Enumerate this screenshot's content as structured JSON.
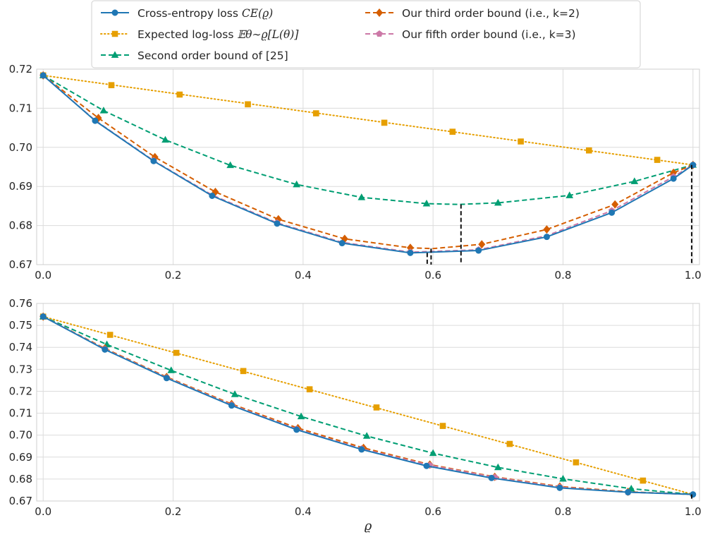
{
  "chart_data": {
    "type": "line",
    "xlabel": "ϱ",
    "legend": {
      "placement": "top-center",
      "entries": [
        {
          "key": "ce",
          "label": "Cross-entropy loss ",
          "math": "CE(ϱ)"
        },
        {
          "key": "exp",
          "label": "Expected log-loss ",
          "math": "𝔼θ∼ϱ[L(θ)]"
        },
        {
          "key": "second",
          "label": "Second order bound of [25]",
          "math": ""
        },
        {
          "key": "third",
          "label": "Our third order bound (i.e., k=2)",
          "math": ""
        },
        {
          "key": "fifth",
          "label": "Our fifth order bound (i.e., k=3)",
          "math": ""
        }
      ]
    },
    "styles": {
      "ce": {
        "color": "#1f77b4",
        "dash": "",
        "marker": "circle"
      },
      "exp": {
        "color": "#e69f00",
        "dash": "1.5,3.5",
        "marker": "square"
      },
      "second": {
        "color": "#009e73",
        "dash": "7,4",
        "marker": "triangle"
      },
      "third": {
        "color": "#d55e00",
        "dash": "7,4",
        "marker": "diamond"
      },
      "fifth": {
        "color": "#cc79a7",
        "dash": "7,4",
        "marker": "pentagon"
      }
    },
    "panels": [
      {
        "name": "top",
        "xlim": [
          -0.01,
          1.01
        ],
        "ylim": [
          0.67,
          0.72
        ],
        "xticks": [
          "0.0",
          "0.2",
          "0.4",
          "0.6",
          "0.8",
          "1.0"
        ],
        "yticks": [
          "0.67",
          "0.68",
          "0.69",
          "0.70",
          "0.71",
          "0.72"
        ],
        "endpoints": {
          "y0": 0.7184,
          "y1": 0.6955
        },
        "series": {
          "ce": {
            "curve": [
              [
                0,
                0.7184
              ],
              [
                0.08,
                0.7068
              ],
              [
                0.17,
                0.6965
              ],
              [
                0.26,
                0.6876
              ],
              [
                0.36,
                0.6805
              ],
              [
                0.46,
                0.6755
              ],
              [
                0.565,
                0.673
              ],
              [
                0.67,
                0.6736
              ],
              [
                0.775,
                0.6771
              ],
              [
                0.875,
                0.6833
              ],
              [
                0.97,
                0.692
              ],
              [
                1.0,
                0.6955
              ]
            ],
            "markers": [
              [
                0,
                0.7184
              ],
              [
                0.08,
                0.7068
              ],
              [
                0.17,
                0.6965
              ],
              [
                0.26,
                0.6876
              ],
              [
                0.36,
                0.6805
              ],
              [
                0.46,
                0.6755
              ],
              [
                0.565,
                0.673
              ],
              [
                0.67,
                0.6736
              ],
              [
                0.775,
                0.6771
              ],
              [
                0.875,
                0.6833
              ],
              [
                0.97,
                0.692
              ],
              [
                1.0,
                0.6955
              ]
            ]
          },
          "exp": {
            "curve": [
              [
                0,
                0.7184
              ],
              [
                1.0,
                0.6955
              ]
            ],
            "markers": [
              [
                0,
                0.7184
              ],
              [
                0.105,
                0.7159
              ],
              [
                0.21,
                0.7135
              ],
              [
                0.315,
                0.711
              ],
              [
                0.42,
                0.7087
              ],
              [
                0.525,
                0.7063
              ],
              [
                0.63,
                0.704
              ],
              [
                0.735,
                0.7015
              ],
              [
                0.84,
                0.6992
              ],
              [
                0.945,
                0.6968
              ]
            ]
          },
          "second": {
            "curve": [
              [
                0,
                0.7184
              ],
              [
                0.093,
                0.7094
              ],
              [
                0.188,
                0.7019
              ],
              [
                0.288,
                0.6954
              ],
              [
                0.39,
                0.6905
              ],
              [
                0.49,
                0.6872
              ],
              [
                0.59,
                0.6856
              ],
              [
                0.64,
                0.6854
              ],
              [
                0.7,
                0.6858
              ],
              [
                0.81,
                0.6877
              ],
              [
                0.91,
                0.6913
              ],
              [
                1.0,
                0.6955
              ]
            ],
            "markers": [
              [
                0,
                0.7184
              ],
              [
                0.093,
                0.7094
              ],
              [
                0.188,
                0.7019
              ],
              [
                0.288,
                0.6954
              ],
              [
                0.39,
                0.6905
              ],
              [
                0.49,
                0.6872
              ],
              [
                0.59,
                0.6856
              ],
              [
                0.7,
                0.6858
              ],
              [
                0.81,
                0.6877
              ],
              [
                0.91,
                0.6913
              ],
              [
                1.0,
                0.6955
              ]
            ]
          },
          "third": {
            "curve": [
              [
                0,
                0.7184
              ],
              [
                0.085,
                0.7075
              ],
              [
                0.172,
                0.6975
              ],
              [
                0.265,
                0.6886
              ],
              [
                0.362,
                0.6816
              ],
              [
                0.464,
                0.6766
              ],
              [
                0.565,
                0.6743
              ],
              [
                0.6,
                0.6741
              ],
              [
                0.675,
                0.6752
              ],
              [
                0.775,
                0.679
              ],
              [
                0.88,
                0.6854
              ],
              [
                0.97,
                0.6935
              ],
              [
                1.0,
                0.6955
              ]
            ],
            "markers": [
              [
                0,
                0.7184
              ],
              [
                0.085,
                0.7075
              ],
              [
                0.172,
                0.6975
              ],
              [
                0.265,
                0.6886
              ],
              [
                0.362,
                0.6816
              ],
              [
                0.464,
                0.6766
              ],
              [
                0.565,
                0.6743
              ],
              [
                0.675,
                0.6752
              ],
              [
                0.775,
                0.679
              ],
              [
                0.88,
                0.6854
              ],
              [
                0.97,
                0.6935
              ],
              [
                1.0,
                0.6955
              ]
            ]
          },
          "fifth": {
            "curve": [
              [
                0,
                0.7184
              ],
              [
                0.08,
                0.7069
              ],
              [
                0.17,
                0.6966
              ],
              [
                0.26,
                0.6878
              ],
              [
                0.36,
                0.6807
              ],
              [
                0.46,
                0.6757
              ],
              [
                0.565,
                0.6732
              ],
              [
                0.67,
                0.6738
              ],
              [
                0.775,
                0.6774
              ],
              [
                0.875,
                0.6838
              ],
              [
                0.97,
                0.6925
              ],
              [
                1.0,
                0.6955
              ]
            ],
            "markers": [
              [
                0,
                0.7184
              ],
              [
                0.17,
                0.6966
              ],
              [
                0.36,
                0.6807
              ],
              [
                0.565,
                0.6732
              ],
              [
                0.67,
                0.6738
              ],
              [
                0.875,
                0.6838
              ],
              [
                0.97,
                0.6925
              ],
              [
                1.0,
                0.6955
              ]
            ]
          }
        },
        "minima": [
          {
            "x": 0.591,
            "y": 0.673
          },
          {
            "x": 0.597,
            "y": 0.6741
          },
          {
            "x": 0.643,
            "y": 0.6854
          },
          {
            "x": 0.998,
            "y": 0.6955
          }
        ]
      },
      {
        "name": "bottom",
        "xlim": [
          -0.01,
          1.01
        ],
        "ylim": [
          0.67,
          0.76
        ],
        "xticks": [
          "0.0",
          "0.2",
          "0.4",
          "0.6",
          "0.8",
          "1.0"
        ],
        "yticks": [
          "0.67",
          "0.68",
          "0.69",
          "0.70",
          "0.71",
          "0.72",
          "0.73",
          "0.74",
          "0.75",
          "0.76"
        ],
        "endpoints": {
          "y0": 0.754,
          "y1": 0.673
        },
        "series": {
          "ce": {
            "curve": [
              [
                0,
                0.754
              ],
              [
                0.095,
                0.739
              ],
              [
                0.19,
                0.726
              ],
              [
                0.29,
                0.7135
              ],
              [
                0.39,
                0.7025
              ],
              [
                0.49,
                0.6935
              ],
              [
                0.59,
                0.686
              ],
              [
                0.69,
                0.6805
              ],
              [
                0.795,
                0.676
              ],
              [
                0.9,
                0.674
              ],
              [
                1.0,
                0.673
              ]
            ],
            "markers": [
              [
                0,
                0.754
              ],
              [
                0.095,
                0.739
              ],
              [
                0.19,
                0.726
              ],
              [
                0.29,
                0.7135
              ],
              [
                0.39,
                0.7025
              ],
              [
                0.49,
                0.6935
              ],
              [
                0.59,
                0.686
              ],
              [
                0.69,
                0.6805
              ],
              [
                0.795,
                0.676
              ],
              [
                0.9,
                0.674
              ],
              [
                1.0,
                0.673
              ]
            ]
          },
          "exp": {
            "curve": [
              [
                0,
                0.754
              ],
              [
                1.0,
                0.673
              ]
            ],
            "markers": [
              [
                0,
                0.754
              ],
              [
                0.103,
                0.7457
              ],
              [
                0.205,
                0.7375
              ],
              [
                0.308,
                0.7292
              ],
              [
                0.41,
                0.7209
              ],
              [
                0.513,
                0.7126
              ],
              [
                0.615,
                0.7042
              ],
              [
                0.718,
                0.696
              ],
              [
                0.82,
                0.6876
              ],
              [
                0.923,
                0.6793
              ]
            ]
          },
          "second": {
            "curve": [
              [
                0,
                0.754
              ],
              [
                0.098,
                0.7413
              ],
              [
                0.197,
                0.7295
              ],
              [
                0.295,
                0.7186
              ],
              [
                0.397,
                0.7085
              ],
              [
                0.498,
                0.6996
              ],
              [
                0.6,
                0.6918
              ],
              [
                0.7,
                0.6853
              ],
              [
                0.8,
                0.6801
              ],
              [
                0.905,
                0.6756
              ],
              [
                1.0,
                0.673
              ]
            ],
            "markers": [
              [
                0,
                0.754
              ],
              [
                0.098,
                0.7413
              ],
              [
                0.197,
                0.7295
              ],
              [
                0.295,
                0.7186
              ],
              [
                0.397,
                0.7085
              ],
              [
                0.498,
                0.6996
              ],
              [
                0.6,
                0.6918
              ],
              [
                0.7,
                0.6853
              ],
              [
                0.8,
                0.6801
              ],
              [
                0.905,
                0.6756
              ]
            ]
          },
          "third": {
            "curve": [
              [
                0,
                0.754
              ],
              [
                0.095,
                0.7395
              ],
              [
                0.19,
                0.7265
              ],
              [
                0.29,
                0.7142
              ],
              [
                0.392,
                0.7032
              ],
              [
                0.493,
                0.6942
              ],
              [
                0.595,
                0.6866
              ],
              [
                0.695,
                0.681
              ],
              [
                0.795,
                0.6766
              ],
              [
                0.9,
                0.6742
              ],
              [
                1.0,
                0.673
              ]
            ],
            "markers": [
              [
                0,
                0.754
              ],
              [
                0.095,
                0.7395
              ],
              [
                0.19,
                0.7265
              ],
              [
                0.29,
                0.7142
              ],
              [
                0.392,
                0.7032
              ],
              [
                0.493,
                0.6942
              ],
              [
                0.595,
                0.6866
              ],
              [
                0.695,
                0.681
              ],
              [
                0.795,
                0.6766
              ],
              [
                0.9,
                0.6742
              ]
            ]
          },
          "fifth": {
            "curve": [
              [
                0,
                0.754
              ],
              [
                0.095,
                0.7392
              ],
              [
                0.19,
                0.7262
              ],
              [
                0.29,
                0.7138
              ],
              [
                0.39,
                0.7028
              ],
              [
                0.49,
                0.6938
              ],
              [
                0.595,
                0.6863
              ],
              [
                0.695,
                0.6808
              ],
              [
                0.795,
                0.6763
              ],
              [
                0.9,
                0.674
              ],
              [
                1.0,
                0.673
              ]
            ],
            "markers": [
              [
                0,
                0.754
              ],
              [
                0.095,
                0.7392
              ],
              [
                0.19,
                0.7262
              ],
              [
                0.29,
                0.7138
              ],
              [
                0.39,
                0.7028
              ],
              [
                0.49,
                0.6938
              ],
              [
                0.595,
                0.6863
              ],
              [
                0.695,
                0.6808
              ],
              [
                0.795,
                0.6763
              ],
              [
                0.9,
                0.674
              ]
            ]
          }
        },
        "minima": [
          {
            "x": 0.998,
            "y": 0.673
          }
        ]
      }
    ]
  }
}
